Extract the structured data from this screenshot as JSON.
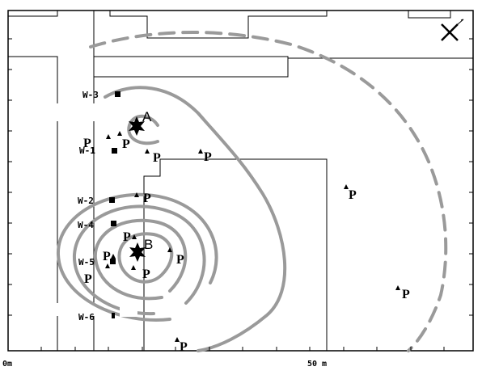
{
  "colors": {
    "contour": "#9a9a9a",
    "outline": "#000000",
    "background": "#ffffff"
  },
  "axis": {
    "start_label": "0m",
    "end_label": "50 m"
  },
  "sources": [
    {
      "label": "A",
      "icon": "star-icon"
    },
    {
      "label": "B",
      "icon": "star-icon"
    }
  ],
  "wells": [
    "W-3",
    "W-1",
    "W-2",
    "W-4",
    "W-5",
    "W-6"
  ],
  "point_glyph": "P",
  "north_arrow_icon": "north-arrow-icon"
}
